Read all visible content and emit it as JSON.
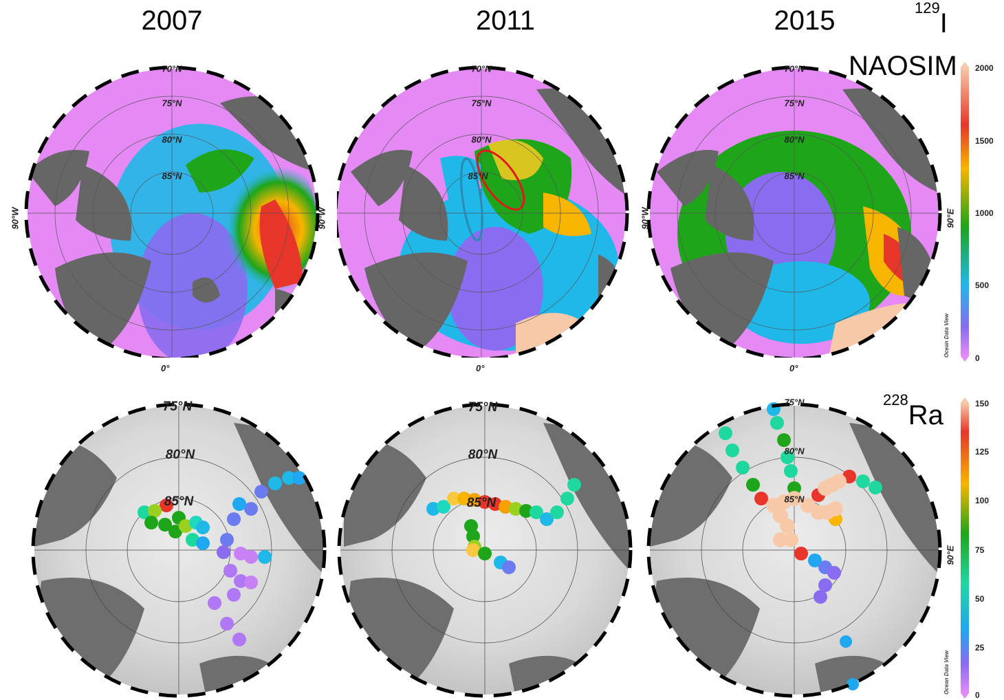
{
  "years": [
    "2007",
    "2011",
    "2015"
  ],
  "top_row": {
    "tracer_mass": "129",
    "tracer_symbol": "I",
    "model_label": "NAOSIM",
    "colorbar": {
      "ticks": [
        "2000",
        "1500",
        "1000",
        "500",
        "0"
      ],
      "colors": [
        "#f7c9a8",
        "#e8352a",
        "#f7b500",
        "#1ea51a",
        "#1fb8e8",
        "#8a6cf0",
        "#e58af5"
      ],
      "watermark": "Ocean Data View"
    },
    "lat_labels": [
      "70°N",
      "75°N",
      "80°N",
      "85°N"
    ],
    "lon_labels": {
      "bottom": "0°",
      "left": "90°W",
      "right": "90°E"
    }
  },
  "bottom_row": {
    "tracer_mass": "228",
    "tracer_symbol": "Ra",
    "colorbar": {
      "ticks": [
        "150",
        "125",
        "100",
        "75",
        "50",
        "25",
        "0"
      ],
      "colors": [
        "#f7c9a8",
        "#e8352a",
        "#f7b500",
        "#1ea51a",
        "#1fd8a0",
        "#1fa8f0",
        "#8a6cf0",
        "#e58af5"
      ],
      "watermark": "Ocean Data View"
    },
    "lat_labels_2007": [
      "75°N",
      "80°N",
      "85°N"
    ],
    "lat_labels_2011": [
      "75°N",
      "80°N",
      "85°N"
    ],
    "lat_labels_2015": [
      "75°N",
      "80°N",
      "85°N"
    ],
    "lon_label_right": "90°E"
  },
  "colors": {
    "ocean_low": "#e58af5",
    "land": "#666666",
    "bathy_light": "#e8e8e8",
    "bathy_mid": "#bdbdbd",
    "annotation_red": "#e01818",
    "annotation_blue": "#2a8ab0"
  }
}
